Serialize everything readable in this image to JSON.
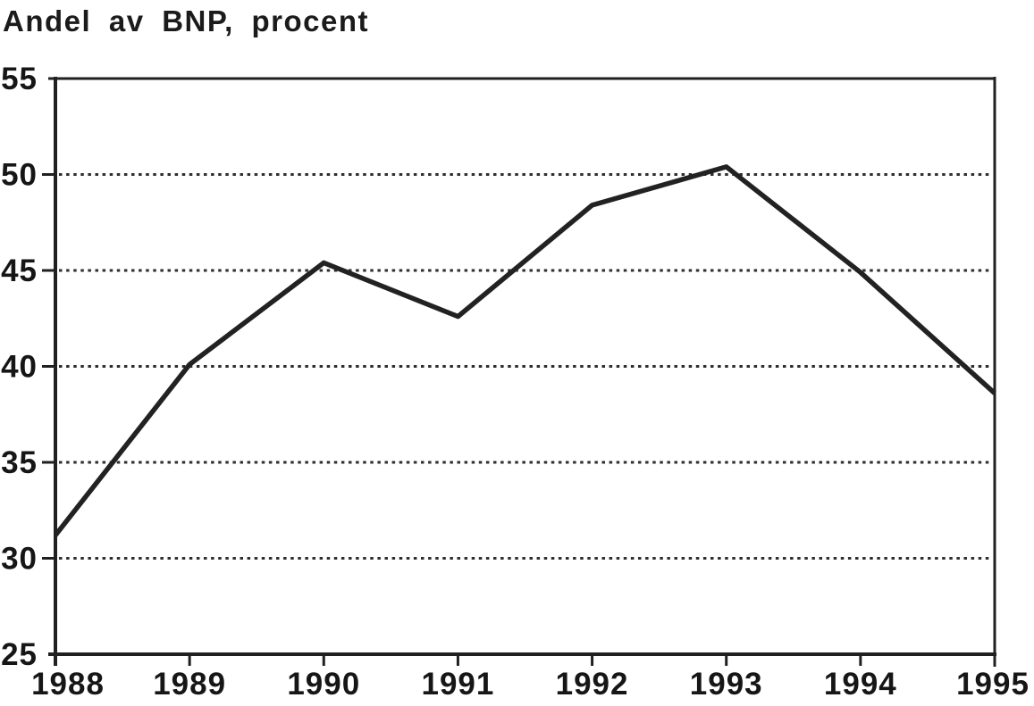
{
  "chart_data": {
    "type": "line",
    "title": "Andel av BNP, procent",
    "categories": [
      "1988",
      "1989",
      "1990",
      "1991",
      "1992",
      "1993",
      "1994",
      "1995"
    ],
    "series": [
      {
        "name": "Andel av BNP, procent",
        "values": [
          31.2,
          40.1,
          45.4,
          42.6,
          48.4,
          50.4,
          44.9,
          38.6
        ]
      }
    ],
    "xlabel": "",
    "ylabel": "",
    "ylim": [
      25,
      55
    ],
    "yticks": [
      25,
      30,
      35,
      40,
      45,
      50,
      55
    ],
    "gridlines": {
      "horizontal_dotted_at": [
        30,
        35,
        40,
        45,
        50
      ]
    },
    "legend": "none",
    "frame": "full-box",
    "colors": {
      "line": "#222222",
      "axis": "#202020",
      "text": "#1b1b1b",
      "background": "#ffffff"
    }
  }
}
